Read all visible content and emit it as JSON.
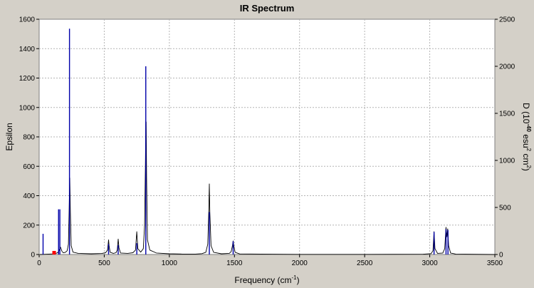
{
  "chart_data": {
    "type": "line",
    "title": "IR Spectrum",
    "xlabel_main": "Frequency (cm",
    "xlabel_sup": "-1",
    "xlabel_tail": ")",
    "ylabel": "Epsilon",
    "y2label_parts": [
      "D (10",
      "-40",
      " esu",
      "2",
      " cm",
      "2",
      ")"
    ],
    "xlim": [
      0,
      3500
    ],
    "ylim": [
      0,
      1600
    ],
    "y2lim": [
      0,
      2500
    ],
    "x_ticks": [
      0,
      500,
      1000,
      1500,
      2000,
      2500,
      3000,
      3500
    ],
    "y_ticks": [
      0,
      200,
      400,
      600,
      800,
      1000,
      1200,
      1400,
      1600
    ],
    "y2_ticks": [
      0,
      500,
      1000,
      1500,
      2000,
      2500
    ],
    "grid": true,
    "colors": {
      "background": "#ffffff",
      "spectrum": "#000000",
      "stick": "#0000aa",
      "marker": "#ff0000",
      "grid": "#b4b4b4",
      "frame": "#d4d0c8"
    },
    "series": [
      {
        "type": "line",
        "points": [
          [
            5,
            0
          ],
          [
            30,
            1
          ],
          [
            60,
            2
          ],
          [
            100,
            4
          ],
          [
            120,
            6
          ],
          [
            130,
            8
          ],
          [
            140,
            12
          ],
          [
            150,
            20
          ],
          [
            158,
            40
          ],
          [
            164,
            50
          ],
          [
            168,
            40
          ],
          [
            175,
            22
          ],
          [
            185,
            12
          ],
          [
            200,
            14
          ],
          [
            215,
            25
          ],
          [
            225,
            70
          ],
          [
            230,
            300
          ],
          [
            235,
            520
          ],
          [
            240,
            280
          ],
          [
            246,
            60
          ],
          [
            260,
            16
          ],
          [
            300,
            8
          ],
          [
            400,
            5
          ],
          [
            480,
            7
          ],
          [
            510,
            12
          ],
          [
            525,
            30
          ],
          [
            533,
            100
          ],
          [
            537,
            60
          ],
          [
            545,
            15
          ],
          [
            570,
            8
          ],
          [
            590,
            12
          ],
          [
            600,
            30
          ],
          [
            607,
            105
          ],
          [
            613,
            45
          ],
          [
            625,
            10
          ],
          [
            680,
            8
          ],
          [
            720,
            12
          ],
          [
            740,
            30
          ],
          [
            750,
            155
          ],
          [
            758,
            40
          ],
          [
            780,
            16
          ],
          [
            800,
            40
          ],
          [
            810,
            200
          ],
          [
            816,
            600
          ],
          [
            819,
            910
          ],
          [
            822,
            900
          ],
          [
            825,
            520
          ],
          [
            832,
            100
          ],
          [
            850,
            30
          ],
          [
            900,
            10
          ],
          [
            1000,
            5
          ],
          [
            1100,
            3
          ],
          [
            1200,
            3
          ],
          [
            1250,
            6
          ],
          [
            1280,
            15
          ],
          [
            1295,
            70
          ],
          [
            1303,
            310
          ],
          [
            1307,
            480
          ],
          [
            1311,
            290
          ],
          [
            1320,
            60
          ],
          [
            1340,
            15
          ],
          [
            1400,
            5
          ],
          [
            1460,
            8
          ],
          [
            1475,
            20
          ],
          [
            1485,
            60
          ],
          [
            1490,
            92
          ],
          [
            1494,
            65
          ],
          [
            1505,
            15
          ],
          [
            1540,
            4
          ],
          [
            2000,
            1
          ],
          [
            2500,
            1
          ],
          [
            2950,
            2
          ],
          [
            3010,
            6
          ],
          [
            3025,
            25
          ],
          [
            3033,
            155
          ],
          [
            3040,
            40
          ],
          [
            3060,
            8
          ],
          [
            3100,
            10
          ],
          [
            3115,
            40
          ],
          [
            3125,
            185
          ],
          [
            3132,
            120
          ],
          [
            3138,
            175
          ],
          [
            3145,
            60
          ],
          [
            3160,
            10
          ],
          [
            3200,
            3
          ],
          [
            3500,
            0
          ]
        ]
      },
      {
        "type": "stick",
        "axis": "y2",
        "sticks": [
          [
            30,
            220
          ],
          [
            149,
            480
          ],
          [
            159,
            480
          ],
          [
            233,
            2400
          ],
          [
            533,
            110
          ],
          [
            607,
            100
          ],
          [
            750,
            120
          ],
          [
            819,
            2000
          ],
          [
            1307,
            450
          ],
          [
            1490,
            140
          ],
          [
            3033,
            240
          ],
          [
            3125,
            270
          ],
          [
            3140,
            260
          ]
        ]
      }
    ],
    "marker_points": [
      [
        115,
        0
      ]
    ]
  }
}
